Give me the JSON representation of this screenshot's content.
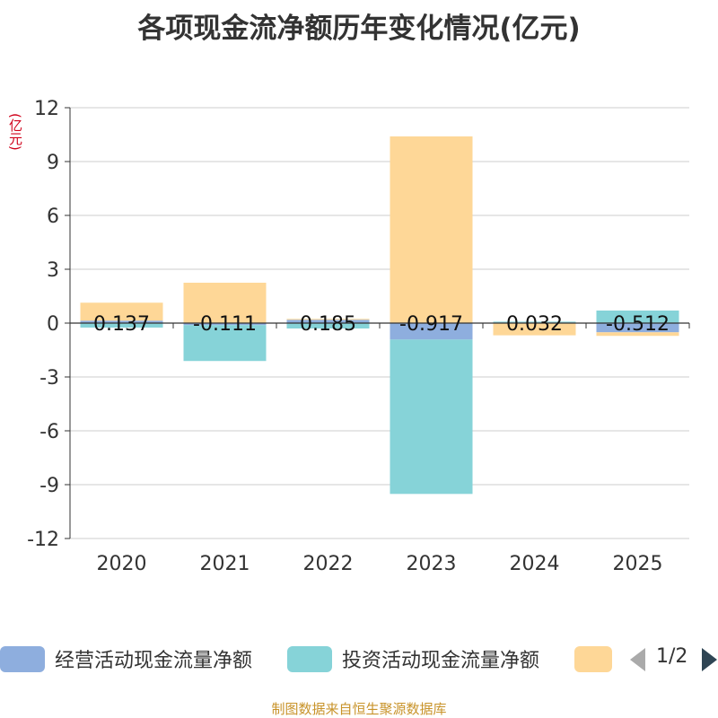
{
  "title": "各项现金流净额历年变化情况(亿元)",
  "unit_label": "(亿元)",
  "source": "制图数据来自恒生聚源数据库",
  "legend_page": "1/2",
  "colors": {
    "operating": "#8eaede",
    "investing": "#86d3d8",
    "financing": "#fed797",
    "axis": "#333333",
    "grid": "#cccccc"
  },
  "chart_data": {
    "type": "bar",
    "stacked": true,
    "title": "各项现金流净额历年变化情况(亿元)",
    "ylabel": "(亿元)",
    "ylim": [
      -12,
      12
    ],
    "yticks": [
      12,
      9,
      6,
      3,
      0,
      -3,
      -6,
      -9,
      -12
    ],
    "categories": [
      "2020",
      "2021",
      "2022",
      "2023",
      "2024",
      "2025"
    ],
    "series": [
      {
        "name": "经营活动现金流量净额",
        "key": "operating",
        "values": [
          0.137,
          -0.111,
          0.185,
          -0.917,
          0.032,
          -0.512
        ],
        "labels": [
          "0.137",
          "-0.111",
          "0.185",
          "-0.917",
          "0.032",
          "-0.512"
        ]
      },
      {
        "name": "投资活动现金流量净额",
        "key": "investing",
        "values": [
          -0.25,
          -2.0,
          -0.3,
          -8.6,
          0.05,
          0.7
        ]
      },
      {
        "name": "",
        "key": "financing",
        "values": [
          1.0,
          2.25,
          0.05,
          10.4,
          -0.68,
          -0.2
        ]
      }
    ]
  }
}
